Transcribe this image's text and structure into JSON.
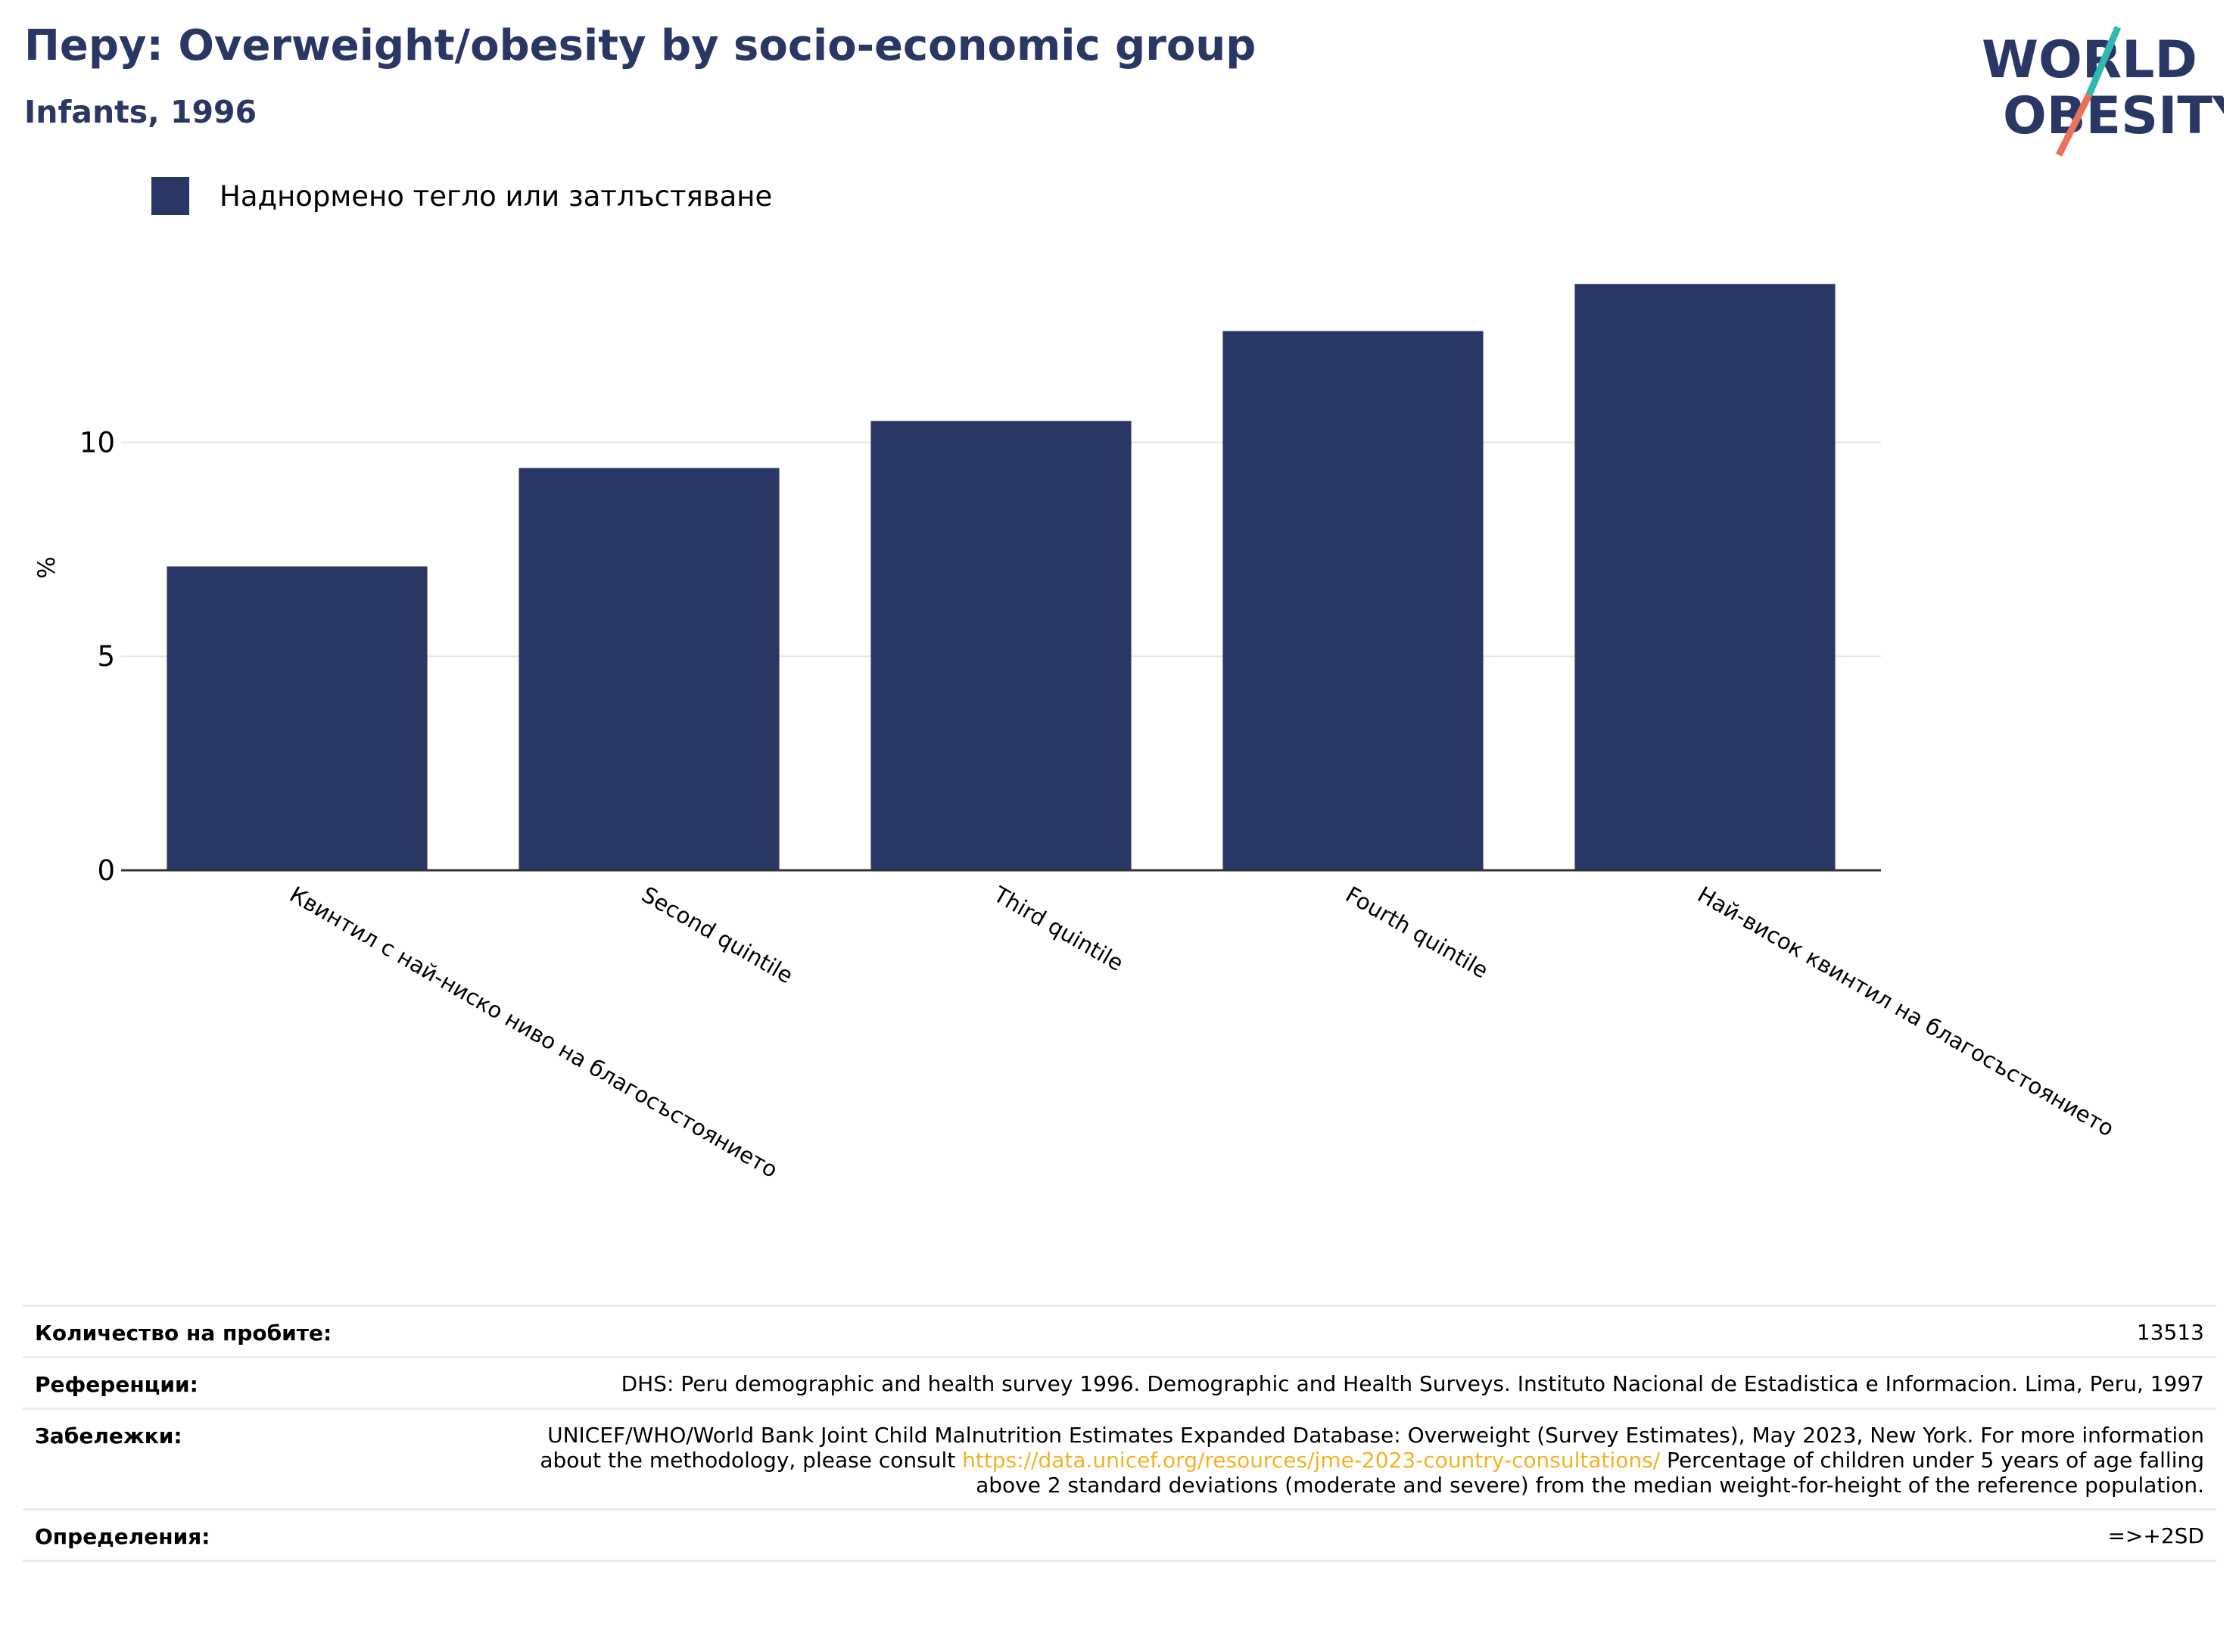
{
  "header": {
    "title": "Перу: Overweight/obesity by socio-economic group",
    "subtitle": "Infants, 1996"
  },
  "logo": {
    "line1": "WORLD",
    "line2": "OBESITY",
    "colors": {
      "text": "#2a3765",
      "slash_teal": "#2fb8b0",
      "slash_coral": "#e8735a"
    }
  },
  "legend": {
    "label": "Наднормено тегло или затлъстяване",
    "color": "#2a3765"
  },
  "chart_data": {
    "type": "bar",
    "categories": [
      "Квинтил с най-ниско ниво на благосъстоянието",
      "Second quintile",
      "Third quintile",
      "Fourth quintile",
      "Най-висок квинтил на благосъстоянието"
    ],
    "series": [
      {
        "name": "Наднормено тегло или затлъстяване",
        "values": [
          7.1,
          9.4,
          10.5,
          12.6,
          13.7
        ]
      }
    ],
    "ylabel": "%",
    "xlabel": "",
    "ylim": [
      0,
      14.5
    ],
    "yticks": [
      0,
      5,
      10
    ],
    "grid": true,
    "legend_position": "top-left",
    "bar_color": "#2a3765",
    "grid_color": "#e6e6e6",
    "axis_color": "#333333"
  },
  "footer": {
    "rows": [
      {
        "label": "Количество на пробите:",
        "value": "13513"
      },
      {
        "label": "Референции:",
        "value": "DHS: Peru demographic and health survey 1996. Demographic and Health Surveys. Instituto Nacional de Estadistica e Informacion. Lima, Peru, 1997"
      },
      {
        "label": "Забележки:",
        "value_before": "UNICEF/WHO/World Bank Joint Child Malnutrition Estimates Expanded Database: Overweight (Survey Estimates), May 2023, New York. For more information about the methodology, please consult ",
        "link": "https://data.unicef.org/resources/jme-2023-country-consultations/",
        "value_after": " Percentage of children under 5 years of age falling above 2 standard deviations (moderate and severe) from the median weight-for-height of the reference population."
      },
      {
        "label": "Определения:",
        "value": "=>+2SD"
      }
    ]
  }
}
